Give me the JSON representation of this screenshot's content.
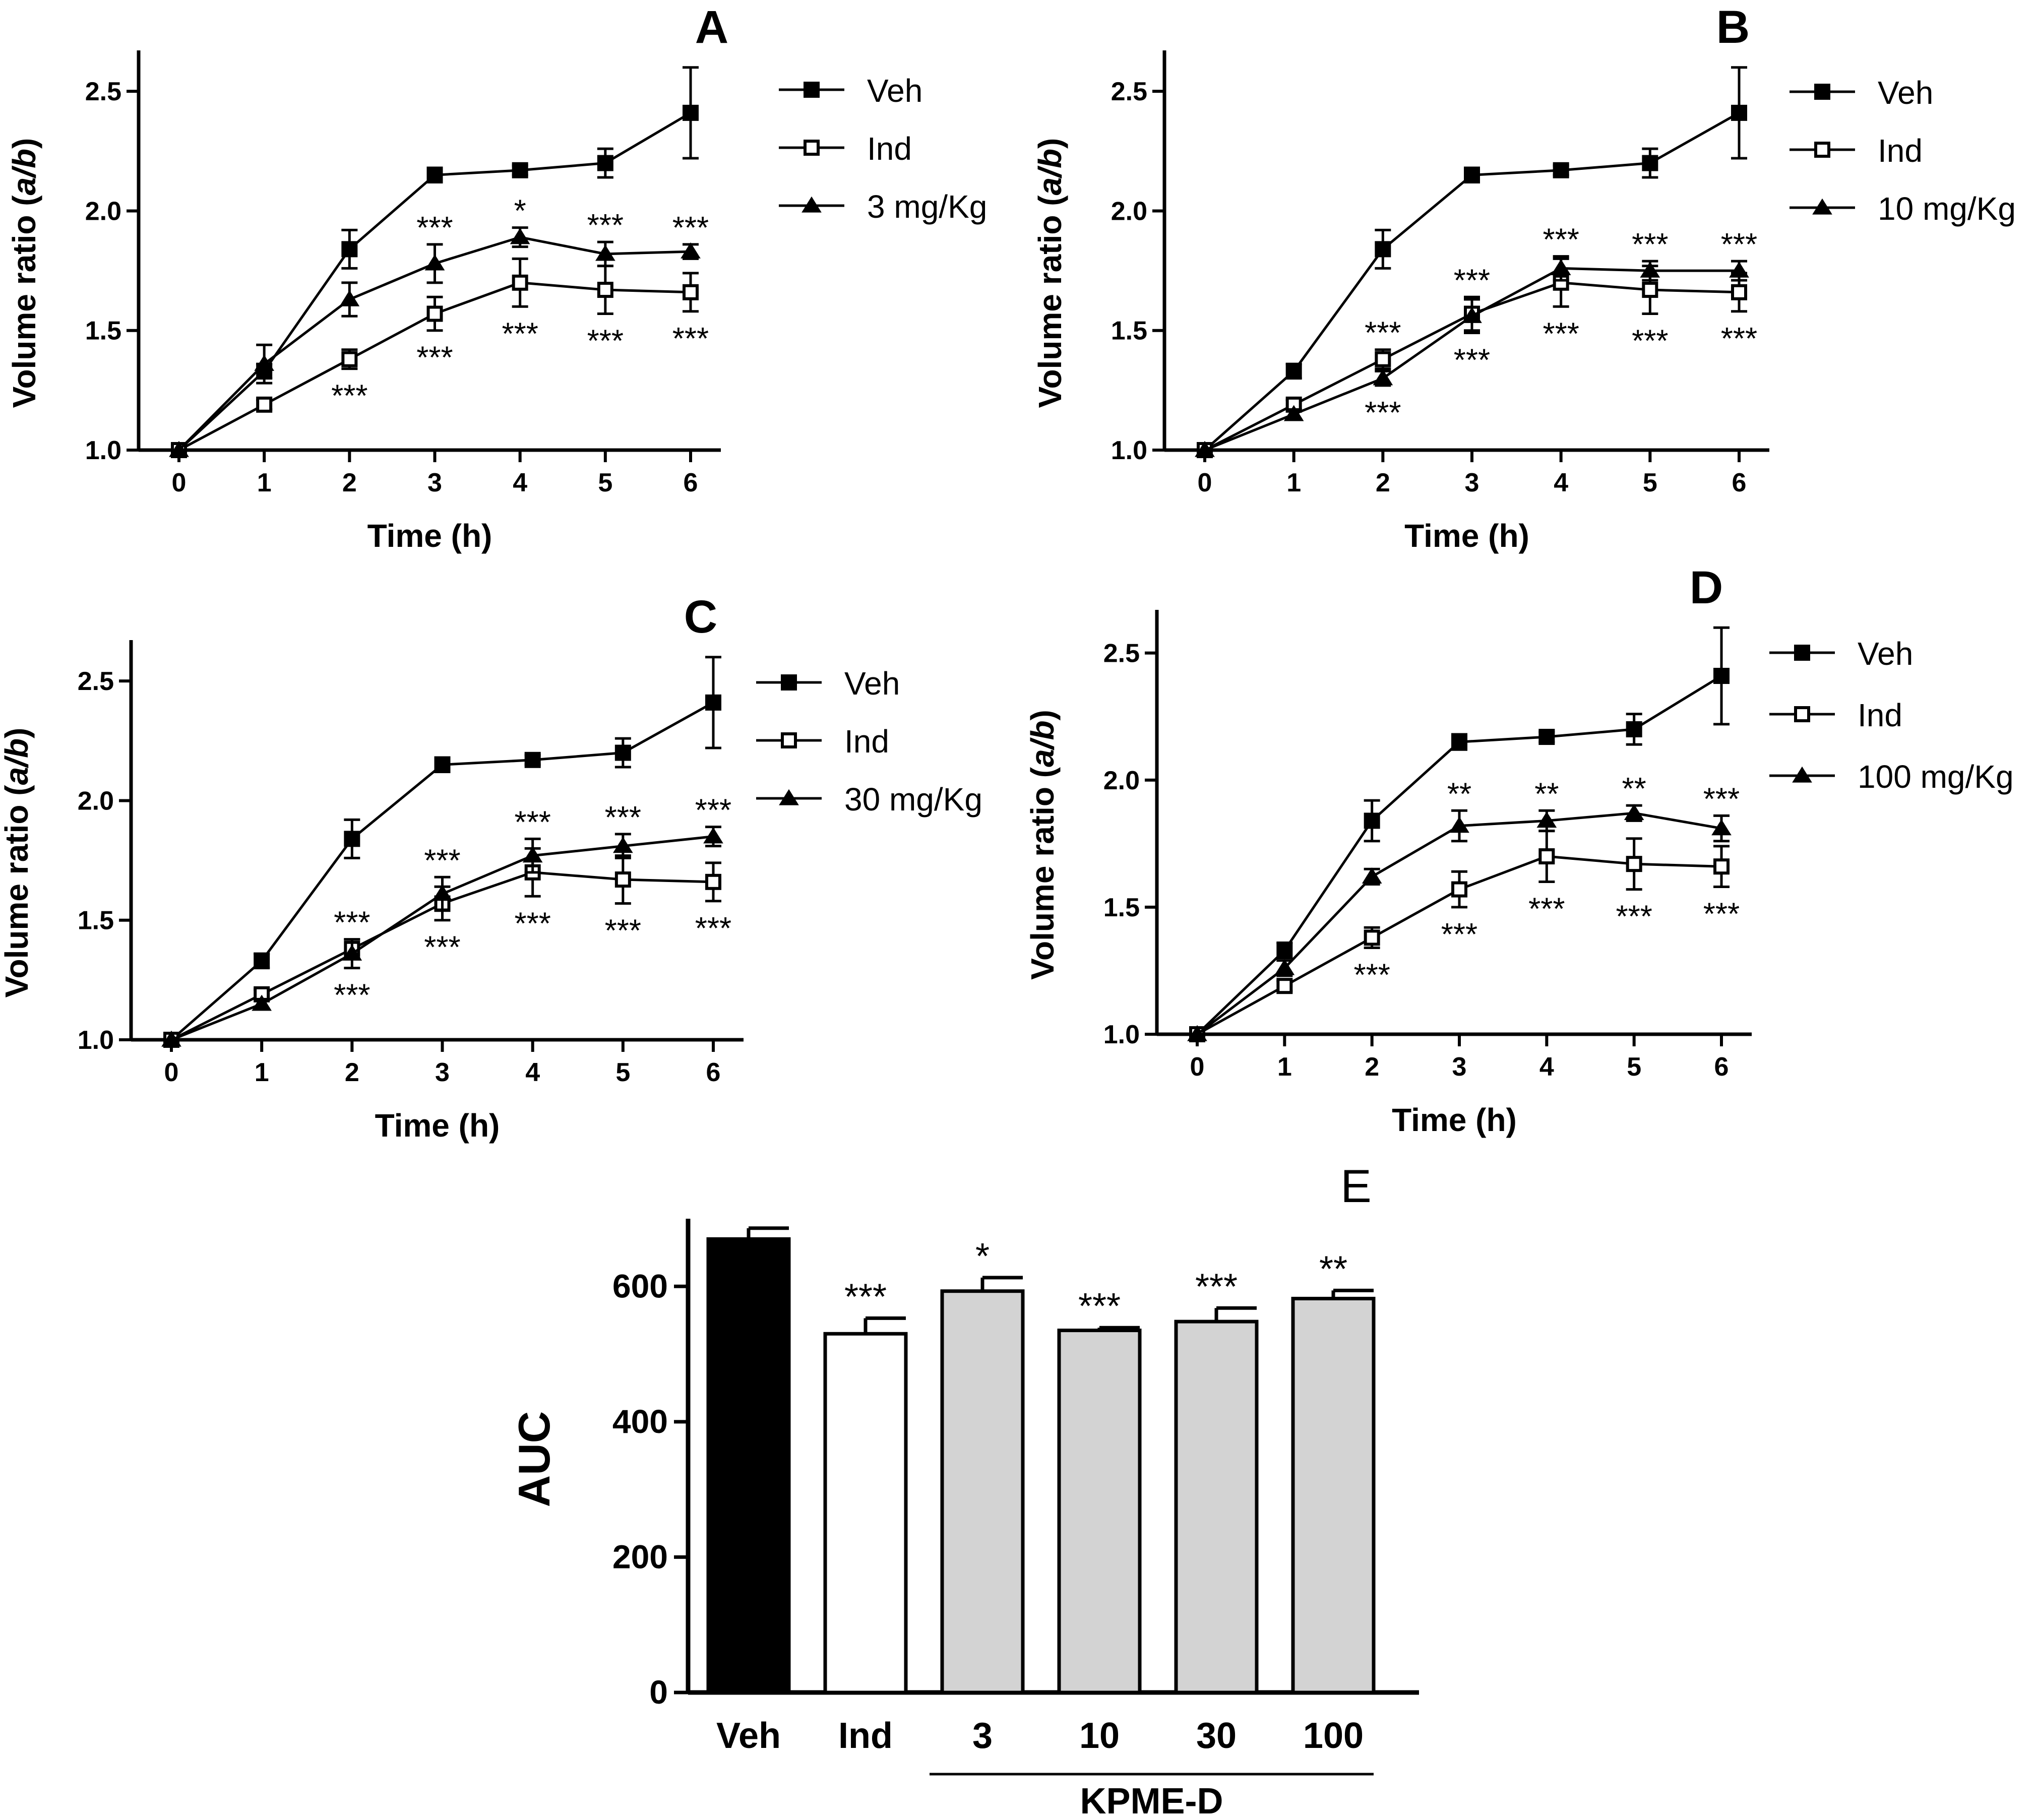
{
  "chart_data": [
    {
      "type": "line",
      "panel": "A",
      "xlabel": "Time (h)",
      "ylabel_main": "Volume ratio (",
      "ylabel_italic": "a/b",
      "ylabel_end": ")",
      "x": [
        0,
        1,
        2,
        3,
        4,
        5,
        6
      ],
      "xticks": [
        "0",
        "1",
        "2",
        "3",
        "4",
        "5",
        "6"
      ],
      "yticks": [
        "1.0",
        "1.5",
        "2.0",
        "2.5"
      ],
      "ylim": [
        1.0,
        2.65
      ],
      "legend_position": "right",
      "series": [
        {
          "name": "Veh",
          "marker": "filled-square",
          "values": [
            1.0,
            1.33,
            1.84,
            2.15,
            2.17,
            2.2,
            2.41
          ],
          "errors": [
            0.01,
            0.03,
            0.08,
            0.03,
            0.02,
            0.06,
            0.19
          ]
        },
        {
          "name": "Ind",
          "marker": "open-square",
          "values": [
            1.0,
            1.19,
            1.38,
            1.57,
            1.7,
            1.67,
            1.66
          ],
          "errors": [
            0.01,
            0.02,
            0.04,
            0.07,
            0.1,
            0.1,
            0.08
          ]
        },
        {
          "name": "3 mg/Kg",
          "marker": "filled-triangle",
          "values": [
            1.0,
            1.36,
            1.63,
            1.78,
            1.89,
            1.82,
            1.83
          ],
          "errors": [
            0.01,
            0.08,
            0.07,
            0.08,
            0.04,
            0.05,
            0.03
          ]
        }
      ],
      "annotations_above": [
        {
          "x": 3,
          "text": "***"
        },
        {
          "x": 4,
          "text": "*"
        },
        {
          "x": 5,
          "text": "***"
        },
        {
          "x": 6,
          "text": "***"
        }
      ],
      "annotations_below": [
        {
          "x": 2,
          "text": "***"
        },
        {
          "x": 3,
          "text": "***"
        },
        {
          "x": 4,
          "text": "***"
        },
        {
          "x": 5,
          "text": "***"
        },
        {
          "x": 6,
          "text": "***"
        }
      ]
    },
    {
      "type": "line",
      "panel": "B",
      "xlabel": "Time (h)",
      "ylabel_main": "Volume ratio (",
      "ylabel_italic": "a/b",
      "ylabel_end": ")",
      "x": [
        0,
        1,
        2,
        3,
        4,
        5,
        6
      ],
      "xticks": [
        "0",
        "1",
        "2",
        "3",
        "4",
        "5",
        "6"
      ],
      "yticks": [
        "1.0",
        "1.5",
        "2.0",
        "2.5"
      ],
      "ylim": [
        1.0,
        2.65
      ],
      "legend_position": "right",
      "series": [
        {
          "name": "Veh",
          "marker": "filled-square",
          "values": [
            1.0,
            1.33,
            1.84,
            2.15,
            2.17,
            2.2,
            2.41
          ],
          "errors": [
            0.01,
            0.03,
            0.08,
            0.03,
            0.02,
            0.06,
            0.19
          ]
        },
        {
          "name": "Ind",
          "marker": "open-square",
          "values": [
            1.0,
            1.19,
            1.38,
            1.57,
            1.7,
            1.67,
            1.66
          ],
          "errors": [
            0.01,
            0.02,
            0.04,
            0.07,
            0.1,
            0.1,
            0.08
          ]
        },
        {
          "name": "10 mg/Kg",
          "marker": "filled-triangle",
          "values": [
            1.0,
            1.15,
            1.3,
            1.56,
            1.76,
            1.75,
            1.75
          ],
          "errors": [
            0.01,
            0.02,
            0.03,
            0.07,
            0.05,
            0.04,
            0.04
          ]
        }
      ],
      "annotations_above": [
        {
          "x": 2,
          "text": "***"
        },
        {
          "x": 3,
          "text": "***"
        },
        {
          "x": 4,
          "text": "***"
        },
        {
          "x": 5,
          "text": "***"
        },
        {
          "x": 6,
          "text": "***"
        }
      ],
      "annotations_below": [
        {
          "x": 2,
          "text": "***"
        },
        {
          "x": 3,
          "text": "***"
        },
        {
          "x": 4,
          "text": "***"
        },
        {
          "x": 5,
          "text": "***"
        },
        {
          "x": 6,
          "text": "***"
        }
      ]
    },
    {
      "type": "line",
      "panel": "C",
      "xlabel": "Time (h)",
      "ylabel_main": "Volume ratio (",
      "ylabel_italic": "a/b",
      "ylabel_end": ")",
      "x": [
        0,
        1,
        2,
        3,
        4,
        5,
        6
      ],
      "xticks": [
        "0",
        "1",
        "2",
        "3",
        "4",
        "5",
        "6"
      ],
      "yticks": [
        "1.0",
        "1.5",
        "2.0",
        "2.5"
      ],
      "ylim": [
        1.0,
        2.65
      ],
      "legend_position": "right",
      "series": [
        {
          "name": "Veh",
          "marker": "filled-square",
          "values": [
            1.0,
            1.33,
            1.84,
            2.15,
            2.17,
            2.2,
            2.41
          ],
          "errors": [
            0.01,
            0.03,
            0.08,
            0.03,
            0.02,
            0.06,
            0.19
          ]
        },
        {
          "name": "Ind",
          "marker": "open-square",
          "values": [
            1.0,
            1.19,
            1.38,
            1.57,
            1.7,
            1.67,
            1.66
          ],
          "errors": [
            0.01,
            0.02,
            0.04,
            0.07,
            0.1,
            0.1,
            0.08
          ]
        },
        {
          "name": "30 mg/Kg",
          "marker": "filled-triangle",
          "values": [
            1.0,
            1.15,
            1.36,
            1.61,
            1.77,
            1.81,
            1.85
          ],
          "errors": [
            0.01,
            0.02,
            0.06,
            0.07,
            0.07,
            0.05,
            0.04
          ]
        }
      ],
      "annotations_above": [
        {
          "x": 2,
          "text": "***"
        },
        {
          "x": 3,
          "text": "***"
        },
        {
          "x": 4,
          "text": "***"
        },
        {
          "x": 5,
          "text": "***"
        },
        {
          "x": 6,
          "text": "***"
        }
      ],
      "annotations_below": [
        {
          "x": 2,
          "text": "***"
        },
        {
          "x": 3,
          "text": "***"
        },
        {
          "x": 4,
          "text": "***"
        },
        {
          "x": 5,
          "text": "***"
        },
        {
          "x": 6,
          "text": "***"
        }
      ]
    },
    {
      "type": "line",
      "panel": "D",
      "xlabel": "Time (h)",
      "ylabel_main": "Volume ratio (",
      "ylabel_italic": "a/b",
      "ylabel_end": ")",
      "x": [
        0,
        1,
        2,
        3,
        4,
        5,
        6
      ],
      "xticks": [
        "0",
        "1",
        "2",
        "3",
        "4",
        "5",
        "6"
      ],
      "yticks": [
        "1.0",
        "1.5",
        "2.0",
        "2.5"
      ],
      "ylim": [
        1.0,
        2.65
      ],
      "legend_position": "right",
      "series": [
        {
          "name": "Veh",
          "marker": "filled-square",
          "values": [
            1.0,
            1.33,
            1.84,
            2.15,
            2.17,
            2.2,
            2.41
          ],
          "errors": [
            0.01,
            0.03,
            0.08,
            0.03,
            0.02,
            0.06,
            0.19
          ]
        },
        {
          "name": "Ind",
          "marker": "open-square",
          "values": [
            1.0,
            1.19,
            1.38,
            1.57,
            1.7,
            1.67,
            1.66
          ],
          "errors": [
            0.01,
            0.02,
            0.04,
            0.07,
            0.1,
            0.1,
            0.08
          ]
        },
        {
          "name": "100 mg/Kg",
          "marker": "filled-triangle",
          "values": [
            1.0,
            1.26,
            1.62,
            1.82,
            1.84,
            1.87,
            1.81
          ],
          "errors": [
            0.01,
            0.03,
            0.03,
            0.06,
            0.04,
            0.03,
            0.05
          ]
        }
      ],
      "annotations_above": [
        {
          "x": 3,
          "text": "**"
        },
        {
          "x": 4,
          "text": "**"
        },
        {
          "x": 5,
          "text": "**"
        },
        {
          "x": 6,
          "text": "***"
        }
      ],
      "annotations_below": [
        {
          "x": 2,
          "text": "***"
        },
        {
          "x": 3,
          "text": "***"
        },
        {
          "x": 4,
          "text": "***"
        },
        {
          "x": 5,
          "text": "***"
        },
        {
          "x": 6,
          "text": "***"
        }
      ]
    },
    {
      "type": "bar",
      "panel": "E",
      "ylabel": "AUC",
      "categories": [
        "Veh",
        "Ind",
        "3",
        "10",
        "30",
        "100"
      ],
      "values": [
        670,
        530,
        593,
        535,
        548,
        582
      ],
      "errors": [
        16,
        23,
        20,
        4,
        20,
        12
      ],
      "colors": [
        "#000000",
        "#ffffff",
        "#d3d3d3",
        "#d3d3d3",
        "#d3d3d3",
        "#d3d3d3"
      ],
      "annotations": [
        "",
        "***",
        "*",
        "***",
        "***",
        "**"
      ],
      "ylim": [
        0,
        700
      ],
      "yticks": [
        "0",
        "200",
        "400",
        "600"
      ],
      "group_label": "KPME-D"
    }
  ]
}
